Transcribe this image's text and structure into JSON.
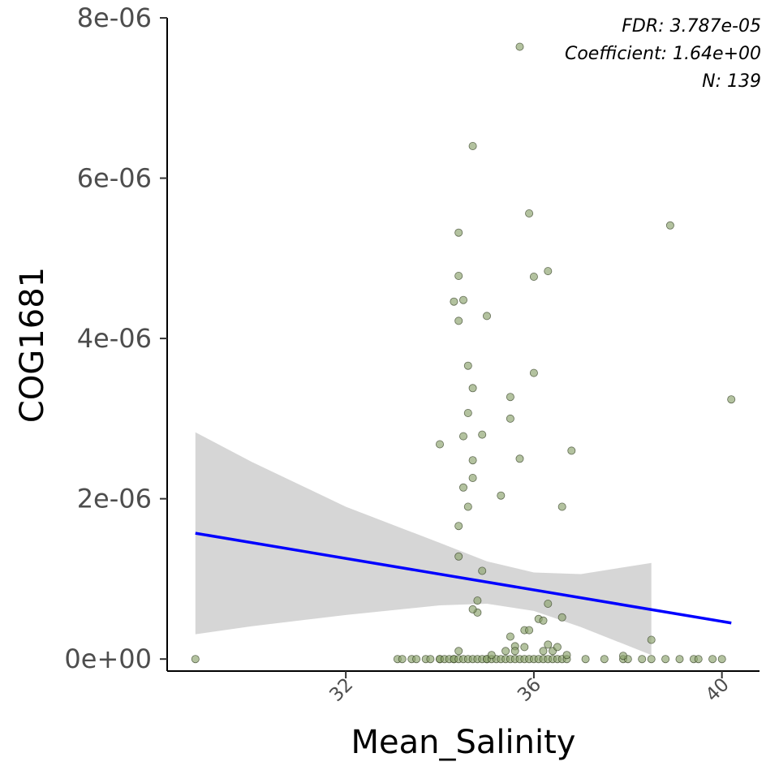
{
  "chart_data": {
    "type": "scatter",
    "xlabel": "Mean_Salinity",
    "ylabel": "COG1681",
    "xlim": [
      28.2,
      40.8
    ],
    "ylim": [
      -1.5e-07,
      8e-06
    ],
    "x_ticks": [
      32,
      36,
      40
    ],
    "x_tick_labels": [
      "32",
      "36",
      "40"
    ],
    "y_ticks": [
      0,
      2e-06,
      4e-06,
      6e-06,
      8e-06
    ],
    "y_tick_labels": [
      "0e+00",
      "2e-06",
      "4e-06",
      "6e-06",
      "8e-06"
    ],
    "grid": false,
    "legend": "none",
    "annotations": [
      "FDR: 3.787e-05",
      "Coefficient: 1.64e+00",
      "N: 139"
    ],
    "points": [
      {
        "x": 28.8,
        "y": 0
      },
      {
        "x": 33.1,
        "y": 0
      },
      {
        "x": 33.2,
        "y": 0
      },
      {
        "x": 33.4,
        "y": 0
      },
      {
        "x": 33.5,
        "y": 0
      },
      {
        "x": 33.7,
        "y": 0
      },
      {
        "x": 33.8,
        "y": 0
      },
      {
        "x": 34.0,
        "y": 0
      },
      {
        "x": 34.0,
        "y": 0
      },
      {
        "x": 34.1,
        "y": 0
      },
      {
        "x": 34.2,
        "y": 0
      },
      {
        "x": 34.3,
        "y": 0
      },
      {
        "x": 34.3,
        "y": 0
      },
      {
        "x": 34.4,
        "y": 0
      },
      {
        "x": 34.5,
        "y": 0
      },
      {
        "x": 34.6,
        "y": 0
      },
      {
        "x": 34.7,
        "y": 0
      },
      {
        "x": 34.8,
        "y": 0
      },
      {
        "x": 34.9,
        "y": 0
      },
      {
        "x": 35.0,
        "y": 0
      },
      {
        "x": 35.0,
        "y": 0
      },
      {
        "x": 35.1,
        "y": 0
      },
      {
        "x": 35.2,
        "y": 0
      },
      {
        "x": 35.3,
        "y": 0
      },
      {
        "x": 35.4,
        "y": 0
      },
      {
        "x": 35.5,
        "y": 0
      },
      {
        "x": 35.6,
        "y": 0
      },
      {
        "x": 35.7,
        "y": 0
      },
      {
        "x": 35.8,
        "y": 0
      },
      {
        "x": 35.9,
        "y": 0
      },
      {
        "x": 36.0,
        "y": 0
      },
      {
        "x": 36.1,
        "y": 0
      },
      {
        "x": 36.2,
        "y": 0
      },
      {
        "x": 36.3,
        "y": 0
      },
      {
        "x": 36.4,
        "y": 0
      },
      {
        "x": 36.5,
        "y": 0
      },
      {
        "x": 36.6,
        "y": 0
      },
      {
        "x": 36.7,
        "y": 0
      },
      {
        "x": 37.1,
        "y": 0
      },
      {
        "x": 37.5,
        "y": 0
      },
      {
        "x": 37.9,
        "y": 0
      },
      {
        "x": 38.0,
        "y": 0
      },
      {
        "x": 38.3,
        "y": 0
      },
      {
        "x": 38.5,
        "y": 0
      },
      {
        "x": 38.8,
        "y": 0
      },
      {
        "x": 39.1,
        "y": 0
      },
      {
        "x": 39.4,
        "y": 0
      },
      {
        "x": 39.5,
        "y": 0
      },
      {
        "x": 39.8,
        "y": 0
      },
      {
        "x": 40.0,
        "y": 0
      },
      {
        "x": 34.4,
        "y": 1e-07
      },
      {
        "x": 35.1,
        "y": 5e-08
      },
      {
        "x": 35.4,
        "y": 1e-07
      },
      {
        "x": 35.6,
        "y": 1.6e-07
      },
      {
        "x": 35.6,
        "y": 1e-07
      },
      {
        "x": 35.8,
        "y": 1.5e-07
      },
      {
        "x": 36.2,
        "y": 1e-07
      },
      {
        "x": 36.3,
        "y": 1.8e-07
      },
      {
        "x": 36.4,
        "y": 1e-07
      },
      {
        "x": 36.5,
        "y": 1.5e-07
      },
      {
        "x": 36.7,
        "y": 5e-08
      },
      {
        "x": 37.9,
        "y": 4e-08
      },
      {
        "x": 35.5,
        "y": 2.8e-07
      },
      {
        "x": 35.8,
        "y": 3.6e-07
      },
      {
        "x": 35.9,
        "y": 3.6e-07
      },
      {
        "x": 36.1,
        "y": 5e-07
      },
      {
        "x": 36.2,
        "y": 4.8e-07
      },
      {
        "x": 36.6,
        "y": 5.2e-07
      },
      {
        "x": 34.8,
        "y": 5.8e-07
      },
      {
        "x": 34.7,
        "y": 6.2e-07
      },
      {
        "x": 34.8,
        "y": 7.3e-07
      },
      {
        "x": 36.3,
        "y": 6.9e-07
      },
      {
        "x": 38.5,
        "y": 2.4e-07
      },
      {
        "x": 34.9,
        "y": 1.1e-06
      },
      {
        "x": 34.4,
        "y": 1.28e-06
      },
      {
        "x": 34.4,
        "y": 1.66e-06
      },
      {
        "x": 34.6,
        "y": 1.9e-06
      },
      {
        "x": 35.3,
        "y": 2.04e-06
      },
      {
        "x": 36.6,
        "y": 1.9e-06
      },
      {
        "x": 34.5,
        "y": 2.14e-06
      },
      {
        "x": 34.7,
        "y": 2.26e-06
      },
      {
        "x": 34.7,
        "y": 2.48e-06
      },
      {
        "x": 35.7,
        "y": 2.5e-06
      },
      {
        "x": 36.8,
        "y": 2.6e-06
      },
      {
        "x": 34.0,
        "y": 2.68e-06
      },
      {
        "x": 34.5,
        "y": 2.78e-06
      },
      {
        "x": 34.9,
        "y": 2.8e-06
      },
      {
        "x": 35.5,
        "y": 3e-06
      },
      {
        "x": 34.6,
        "y": 3.07e-06
      },
      {
        "x": 35.5,
        "y": 3.27e-06
      },
      {
        "x": 34.7,
        "y": 3.38e-06
      },
      {
        "x": 36.0,
        "y": 3.57e-06
      },
      {
        "x": 34.6,
        "y": 3.66e-06
      },
      {
        "x": 40.2,
        "y": 3.24e-06
      },
      {
        "x": 34.4,
        "y": 4.22e-06
      },
      {
        "x": 35.0,
        "y": 4.28e-06
      },
      {
        "x": 34.3,
        "y": 4.46e-06
      },
      {
        "x": 34.5,
        "y": 4.48e-06
      },
      {
        "x": 34.4,
        "y": 4.78e-06
      },
      {
        "x": 36.0,
        "y": 4.77e-06
      },
      {
        "x": 36.3,
        "y": 4.84e-06
      },
      {
        "x": 34.4,
        "y": 5.32e-06
      },
      {
        "x": 35.9,
        "y": 5.56e-06
      },
      {
        "x": 38.9,
        "y": 5.41e-06
      },
      {
        "x": 34.7,
        "y": 6.4e-06
      },
      {
        "x": 35.7,
        "y": 7.64e-06
      }
    ],
    "fit_line": {
      "color": "#0000ff",
      "x": [
        28.8,
        40.2
      ],
      "y": [
        1.57e-06,
        4.5e-07
      ]
    },
    "confidence_band": {
      "color": "#d6d6d6",
      "x": [
        28.8,
        30.0,
        32.0,
        34.0,
        35.0,
        36.0,
        37.0,
        38.5
      ],
      "lower": [
        3.1e-07,
        4.1e-07,
        5.5e-07,
        6.7e-07,
        6.9e-07,
        6e-07,
        4e-07,
        5e-08
      ],
      "upper": [
        2.83e-06,
        2.46e-06,
        1.9e-06,
        1.45e-06,
        1.22e-06,
        1.08e-06,
        1.06e-06,
        1.2e-06
      ]
    },
    "point_fill": "#8ba16c",
    "point_stroke": "#2f3a1f"
  }
}
